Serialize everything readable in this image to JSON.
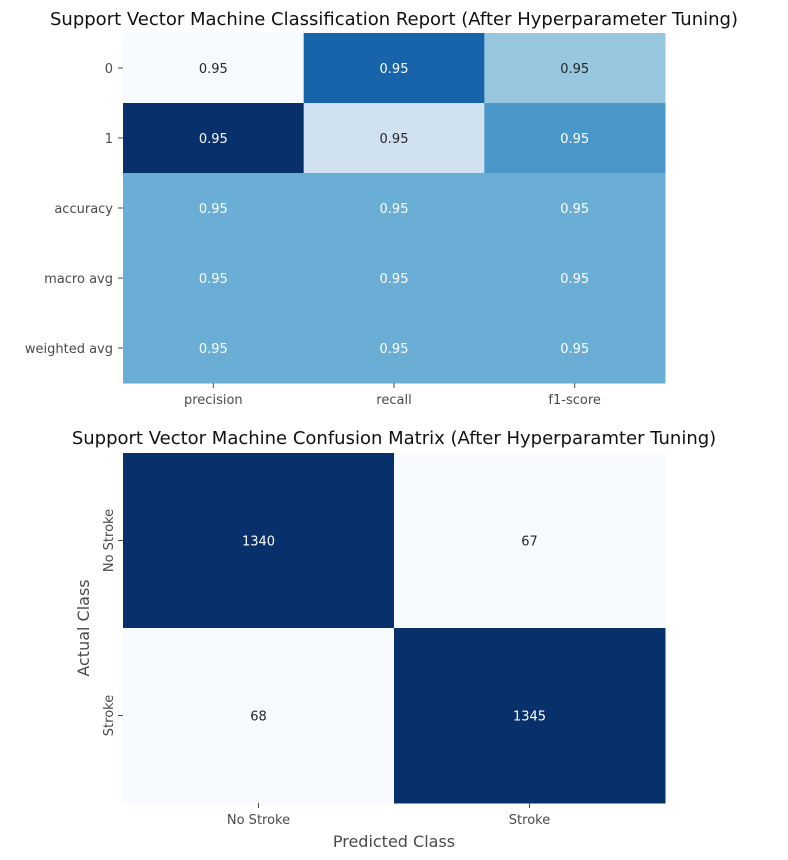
{
  "chart_data": [
    {
      "type": "heatmap",
      "title": "Support Vector Machine Classification Report (After Hyperparameter Tuning)",
      "x_labels": [
        "precision",
        "recall",
        "f1-score"
      ],
      "y_labels": [
        "0",
        "1",
        "accuracy",
        "macro avg",
        "weighted avg"
      ],
      "values": [
        [
          0.9523,
          0.9524,
          0.9523
        ],
        [
          0.9525,
          0.9522,
          0.9524
        ],
        [
          0.9524,
          0.9524,
          0.9524
        ],
        [
          0.9524,
          0.9524,
          0.9524
        ],
        [
          0.9524,
          0.9524,
          0.9524
        ]
      ],
      "display_values": [
        [
          "0.95",
          "0.95",
          "0.95"
        ],
        [
          "0.95",
          "0.95",
          "0.95"
        ],
        [
          "0.95",
          "0.95",
          "0.95"
        ],
        [
          "0.95",
          "0.95",
          "0.95"
        ],
        [
          "0.95",
          "0.95",
          "0.95"
        ]
      ],
      "cell_colors": [
        [
          "#f7fbff",
          "#1764ab",
          "#97c6df"
        ],
        [
          "#08306b",
          "#d0e1f2",
          "#4a98c9"
        ],
        [
          "#6aaed6",
          "#6aaed6",
          "#6aaed6"
        ],
        [
          "#6aaed6",
          "#6aaed6",
          "#6aaed6"
        ],
        [
          "#6aaed6",
          "#6aaed6",
          "#6aaed6"
        ]
      ],
      "text_colors": [
        [
          "#262626",
          "#ffffff",
          "#262626"
        ],
        [
          "#ffffff",
          "#262626",
          "#ffffff"
        ],
        [
          "#ffffff",
          "#ffffff",
          "#ffffff"
        ],
        [
          "#ffffff",
          "#ffffff",
          "#ffffff"
        ],
        [
          "#ffffff",
          "#ffffff",
          "#ffffff"
        ]
      ],
      "colormap": "Blues",
      "colorbar": false
    },
    {
      "type": "heatmap",
      "title": "Support Vector Machine Confusion Matrix (After Hyperparamter Tuning)",
      "xlabel": "Predicted Class",
      "ylabel": "Actual Class",
      "x_labels": [
        "No Stroke",
        "Stroke"
      ],
      "y_labels": [
        "No Stroke",
        "Stroke"
      ],
      "values": [
        [
          1340,
          67
        ],
        [
          68,
          1345
        ]
      ],
      "display_values": [
        [
          "1340",
          "67"
        ],
        [
          "68",
          "1345"
        ]
      ],
      "cell_colors": [
        [
          "#08306b",
          "#f7fbff"
        ],
        [
          "#f7fbff",
          "#08306b"
        ]
      ],
      "text_colors": [
        [
          "#ffffff",
          "#262626"
        ],
        [
          "#262626",
          "#ffffff"
        ]
      ],
      "colormap": "Blues",
      "colorbar": false
    }
  ]
}
